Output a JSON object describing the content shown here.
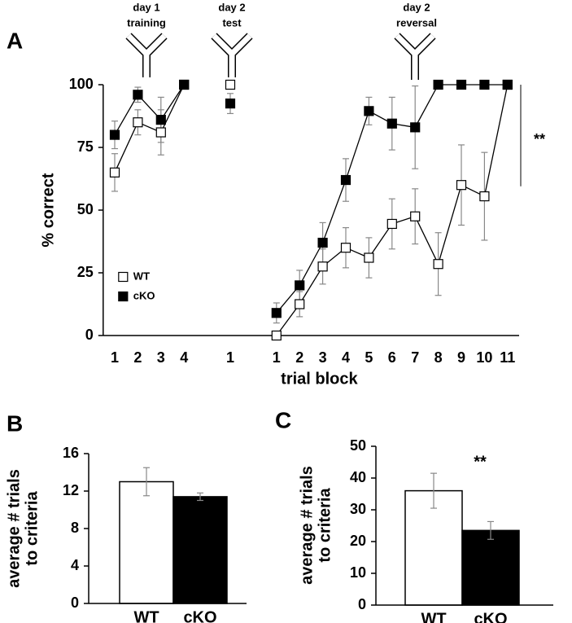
{
  "chart_data": [
    {
      "type": "line",
      "label": "A",
      "ylabel": "% correct",
      "xlabel": "trial block",
      "categories": [
        "1",
        "2",
        "3",
        "4",
        null,
        "1",
        null,
        "1",
        "2",
        "3",
        "4",
        "5",
        "6",
        "7",
        "8",
        "9",
        "10",
        "11"
      ],
      "series": [
        {
          "name": "WT",
          "color": "#ffffff",
          "values": [
            65,
            85,
            81,
            100,
            null,
            100,
            null,
            0,
            12.5,
            27.5,
            35,
            31,
            44.5,
            47.5,
            28.5,
            60,
            55.5,
            100
          ],
          "errors": [
            7.5,
            5,
            9,
            0,
            null,
            0,
            null,
            0,
            5,
            7,
            8,
            8,
            10,
            11,
            12.5,
            16,
            17.5,
            0
          ]
        },
        {
          "name": "cKO",
          "color": "#000000",
          "values": [
            80,
            96,
            86,
            100,
            null,
            92.5,
            null,
            9,
            20,
            37,
            62,
            89.5,
            84.5,
            83,
            100,
            100,
            100,
            100
          ],
          "errors": [
            5.5,
            3,
            9,
            0,
            null,
            4,
            null,
            4,
            6,
            8,
            8.5,
            5.5,
            10.5,
            16.5,
            0,
            0,
            0,
            0
          ]
        }
      ],
      "ylim": [
        0,
        100
      ],
      "yticks": [
        0,
        25,
        50,
        75,
        100
      ],
      "legend": "center left",
      "annotations": [
        {
          "text": [
            "day 1",
            "training"
          ]
        },
        {
          "text": [
            "day 2",
            "test"
          ]
        },
        {
          "text": [
            "day 2",
            "reversal"
          ]
        }
      ],
      "significance": "**"
    },
    {
      "type": "bar",
      "label": "B",
      "ylabel": [
        "average # trials",
        "to criteria"
      ],
      "categories": [
        "WT",
        "cKO"
      ],
      "values": [
        13,
        11.4
      ],
      "errors": [
        1.5,
        0.4
      ],
      "colors": [
        "#ffffff",
        "#000000"
      ],
      "ylim": [
        0,
        16
      ],
      "yticks": [
        0,
        4,
        8,
        12,
        16
      ]
    },
    {
      "type": "bar",
      "label": "C",
      "ylabel": [
        "average # trials",
        "to criteria"
      ],
      "categories": [
        "WT",
        "cKO"
      ],
      "values": [
        36,
        23.5
      ],
      "errors": [
        5.5,
        2.8
      ],
      "colors": [
        "#ffffff",
        "#000000"
      ],
      "ylim": [
        0,
        50
      ],
      "yticks": [
        0,
        10,
        20,
        30,
        40,
        50
      ],
      "significance": "**"
    }
  ]
}
